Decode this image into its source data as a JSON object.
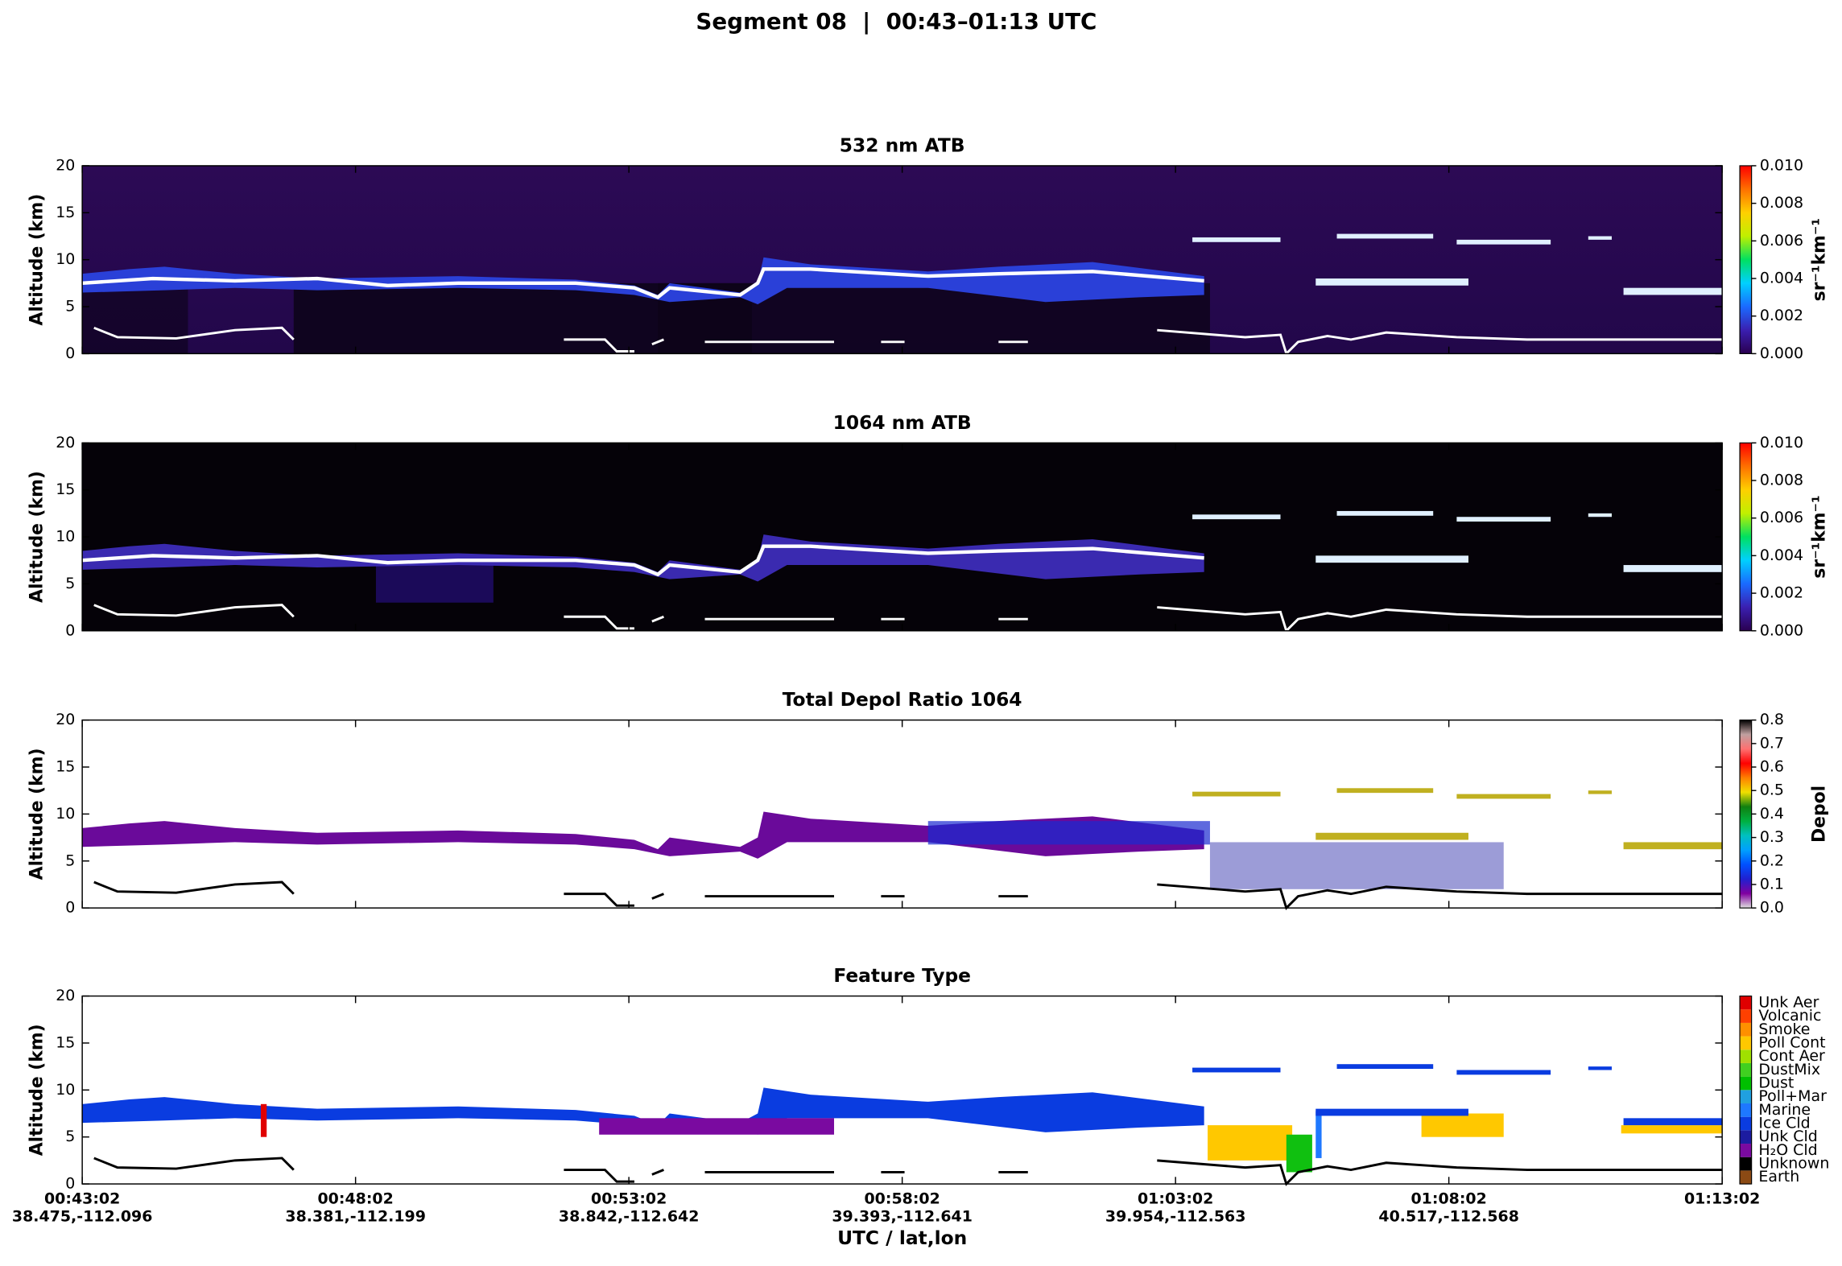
{
  "title": "Segment 08  |  00:43–01:13 UTC",
  "chart_data": [
    {
      "type": "heatmap",
      "title": "532 nm ATB",
      "y_label": "Altitude (km)",
      "ylim": [
        0,
        20
      ],
      "yticks": [
        0,
        5,
        10,
        15,
        20
      ],
      "colorbar": {
        "label": "sr⁻¹km⁻¹",
        "lim": [
          0,
          0.01
        ],
        "ticks": [
          {
            "value": 0,
            "label": "0.000"
          },
          {
            "value": 0.002,
            "label": "0.002"
          },
          {
            "value": 0.004,
            "label": "0.004"
          },
          {
            "value": 0.006,
            "label": "0.006"
          },
          {
            "value": 0.008,
            "label": "0.008"
          },
          {
            "value": 0.01,
            "label": "0.010"
          }
        ],
        "colormap": [
          "#2a0050",
          "#3a1fb0",
          "#1a6aff",
          "#00d0ff",
          "#00e060",
          "#c0f000",
          "#ffd000",
          "#ff7000",
          "#ff0000"
        ]
      }
    },
    {
      "type": "heatmap",
      "title": "1064 nm ATB",
      "y_label": "Altitude (km)",
      "ylim": [
        0,
        20
      ],
      "yticks": [
        0,
        5,
        10,
        15,
        20
      ],
      "colorbar": {
        "label": "sr⁻¹km⁻¹",
        "lim": [
          0,
          0.01
        ],
        "ticks": [
          {
            "value": 0,
            "label": "0.000"
          },
          {
            "value": 0.002,
            "label": "0.002"
          },
          {
            "value": 0.004,
            "label": "0.004"
          },
          {
            "value": 0.006,
            "label": "0.006"
          },
          {
            "value": 0.008,
            "label": "0.008"
          },
          {
            "value": 0.01,
            "label": "0.010"
          }
        ],
        "colormap": [
          "#2a0050",
          "#3a1fb0",
          "#1a6aff",
          "#00d0ff",
          "#00e060",
          "#c0f000",
          "#ffd000",
          "#ff7000",
          "#ff0000"
        ]
      }
    },
    {
      "type": "heatmap",
      "title": "Total Depol Ratio 1064",
      "y_label": "Altitude (km)",
      "ylim": [
        0,
        20
      ],
      "yticks": [
        0,
        5,
        10,
        15,
        20
      ],
      "colorbar": {
        "label": "Depol",
        "lim": [
          0,
          0.8
        ],
        "ticks": [
          {
            "value": 0,
            "label": "0.0"
          },
          {
            "value": 0.1,
            "label": "0.1"
          },
          {
            "value": 0.2,
            "label": "0.2"
          },
          {
            "value": 0.3,
            "label": "0.3"
          },
          {
            "value": 0.4,
            "label": "0.4"
          },
          {
            "value": 0.5,
            "label": "0.5"
          },
          {
            "value": 0.6,
            "label": "0.6"
          },
          {
            "value": 0.7,
            "label": "0.7"
          },
          {
            "value": 0.8,
            "label": "0.8"
          }
        ],
        "colormap": [
          "#e0e0e0",
          "#8000a0",
          "#2020d0",
          "#0050ff",
          "#00a0ff",
          "#00c0c0",
          "#00b040",
          "#108010",
          "#f0e000",
          "#ff8000",
          "#ff0000",
          "#ff7070",
          "#c0a0a0",
          "#000000"
        ]
      }
    },
    {
      "type": "category-map",
      "title": "Feature Type",
      "y_label": "Altitude (km)",
      "ylim": [
        0,
        20
      ],
      "yticks": [
        0,
        5,
        10,
        15,
        20
      ],
      "x_label": "UTC / lat,lon",
      "xlim": [
        0,
        1800
      ],
      "xticks": [
        {
          "value": 0,
          "label": "00:43:02",
          "latlon": "38.475,-112.096"
        },
        {
          "value": 300,
          "label": "00:48:02",
          "latlon": "38.381,-112.199"
        },
        {
          "value": 600,
          "label": "00:53:02",
          "latlon": "38.842,-112.642"
        },
        {
          "value": 900,
          "label": "00:58:02",
          "latlon": "39.393,-112.641"
        },
        {
          "value": 1200,
          "label": "01:03:02",
          "latlon": "39.954,-112.563"
        },
        {
          "value": 1500,
          "label": "01:08:02",
          "latlon": "40.517,-112.568"
        },
        {
          "value": 1800,
          "label": "01:13:02"
        }
      ],
      "colorbar": {
        "categories": [
          "Earth",
          "Unknown",
          "H₂O Cld",
          "Unk Cld",
          "Ice Cld",
          "Marine",
          "Poll+Mar",
          "Dust",
          "DustMix",
          "Cont Aer",
          "Poll Cont",
          "Smoke",
          "Volcanic",
          "Unk Aer"
        ],
        "colors": [
          "#8b4a14",
          "#000000",
          "#7a0aa0",
          "#1c1ca0",
          "#0a3ce0",
          "#1e78ff",
          "#20a0e0",
          "#00c000",
          "#40d020",
          "#a0e000",
          "#ffc800",
          "#ff9000",
          "#ff4000",
          "#e00000"
        ]
      }
    }
  ]
}
